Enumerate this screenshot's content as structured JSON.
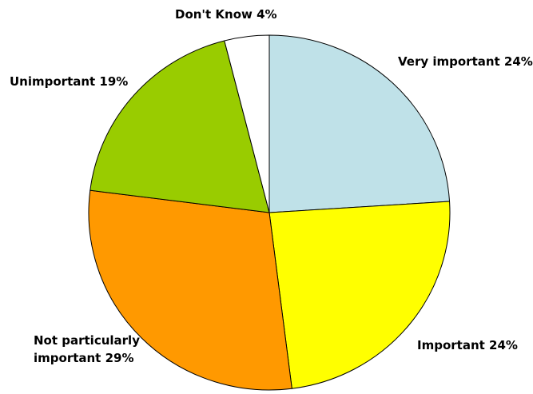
{
  "chart_data": {
    "type": "pie",
    "title": "",
    "slices": [
      {
        "label": "Very important",
        "value": 24,
        "percent_label": "24%",
        "color": "#bfe1e8"
      },
      {
        "label": "Important",
        "value": 24,
        "percent_label": "24%",
        "color": "#ffff00"
      },
      {
        "label": "Not particularly important",
        "value": 29,
        "percent_label": "29%",
        "color": "#ff9900"
      },
      {
        "label": "Unimportant",
        "value": 19,
        "percent_label": "19%",
        "color": "#99cc00"
      },
      {
        "label": "Don't Know",
        "value": 4,
        "percent_label": "4%",
        "color": "#ffffff"
      }
    ],
    "start_angle_deg": 0,
    "direction": "clockwise",
    "legend": "none",
    "outline_color": "#000000"
  }
}
